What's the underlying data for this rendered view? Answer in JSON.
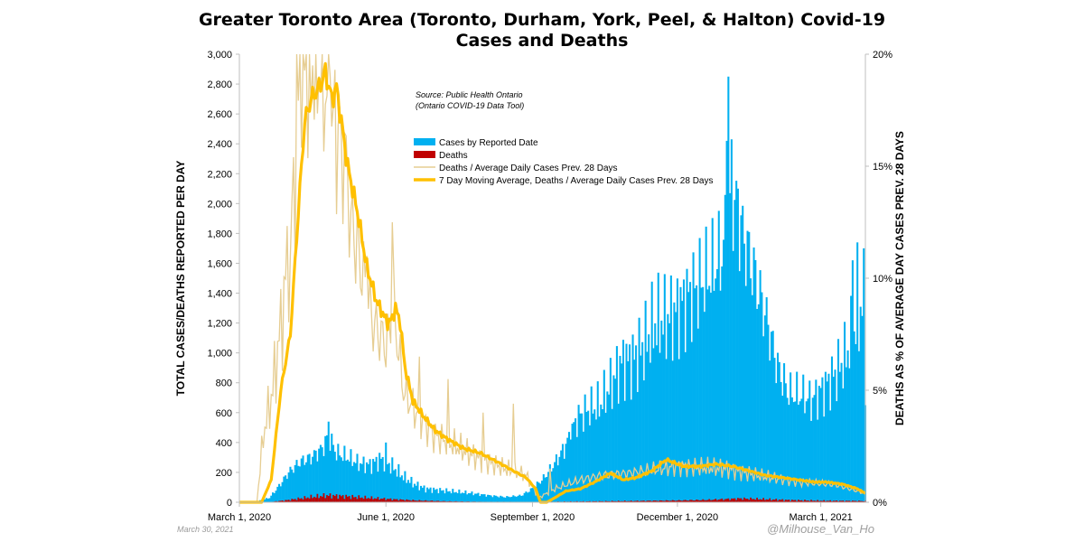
{
  "chart_data": {
    "type": "bar",
    "title_lines": [
      "Greater Toronto Area (Toronto, Durham, York, Peel, & Halton) Covid-19",
      "Cases and Deaths"
    ],
    "ylabel": "TOTAL CASES/DEATHS REPORTED PER DAY",
    "y2label": "DEATHS AS % OF AVERAGE DAY CASES PREV. 28 DAYS",
    "ylim": [
      0,
      3000
    ],
    "y2lim": [
      0,
      20
    ],
    "xlim": [
      "2020-03-01",
      "2021-03-29"
    ],
    "yticks": [
      "0",
      "200",
      "400",
      "600",
      "800",
      "1,000",
      "1,200",
      "1,400",
      "1,600",
      "1,800",
      "2,000",
      "2,200",
      "2,400",
      "2,600",
      "2,800",
      "3,000"
    ],
    "y2ticks": [
      "0%",
      "5%",
      "10%",
      "15%",
      "20%"
    ],
    "xticks": [
      {
        "date": "2020-03-01",
        "label": "March 1, 2020"
      },
      {
        "date": "2020-06-01",
        "label": "June 1, 2020"
      },
      {
        "date": "2020-09-01",
        "label": "September 1, 2020"
      },
      {
        "date": "2020-12-01",
        "label": "December 1, 2020"
      },
      {
        "date": "2021-03-01",
        "label": "March 1, 2021"
      }
    ],
    "grid": false,
    "legend_position": "top-center",
    "series": [
      {
        "name": "Cases by Reported Date",
        "type": "bar",
        "axis": "left",
        "color": "#00b0f0",
        "keypoints": [
          [
            "2020-03-01",
            0
          ],
          [
            "2020-03-12",
            5
          ],
          [
            "2020-03-20",
            30
          ],
          [
            "2020-03-26",
            110
          ],
          [
            "2020-04-01",
            200
          ],
          [
            "2020-04-08",
            270
          ],
          [
            "2020-04-15",
            300
          ],
          [
            "2020-04-22",
            360
          ],
          [
            "2020-04-26",
            440
          ],
          [
            "2020-05-01",
            330
          ],
          [
            "2020-05-08",
            300
          ],
          [
            "2020-05-15",
            260
          ],
          [
            "2020-05-22",
            250
          ],
          [
            "2020-05-29",
            290
          ],
          [
            "2020-06-05",
            240
          ],
          [
            "2020-06-12",
            170
          ],
          [
            "2020-06-19",
            120
          ],
          [
            "2020-06-26",
            90
          ],
          [
            "2020-07-05",
            80
          ],
          [
            "2020-07-15",
            70
          ],
          [
            "2020-07-25",
            60
          ],
          [
            "2020-08-05",
            45
          ],
          [
            "2020-08-15",
            35
          ],
          [
            "2020-08-25",
            45
          ],
          [
            "2020-09-01",
            90
          ],
          [
            "2020-09-08",
            160
          ],
          [
            "2020-09-15",
            260
          ],
          [
            "2020-09-22",
            380
          ],
          [
            "2020-09-29",
            560
          ],
          [
            "2020-10-06",
            620
          ],
          [
            "2020-10-13",
            650
          ],
          [
            "2020-10-20",
            780
          ],
          [
            "2020-10-27",
            930
          ],
          [
            "2020-11-03",
            950
          ],
          [
            "2020-11-10",
            1050
          ],
          [
            "2020-11-17",
            1200
          ],
          [
            "2020-11-24",
            1220
          ],
          [
            "2020-12-01",
            1280
          ],
          [
            "2020-12-08",
            1380
          ],
          [
            "2020-12-15",
            1460
          ],
          [
            "2020-12-22",
            1540
          ],
          [
            "2020-12-29",
            1660
          ],
          [
            "2021-01-05",
            2050
          ],
          [
            "2021-01-12",
            1750
          ],
          [
            "2021-01-19",
            1500
          ],
          [
            "2021-01-26",
            1220
          ],
          [
            "2021-02-02",
            900
          ],
          [
            "2021-02-09",
            730
          ],
          [
            "2021-02-16",
            720
          ],
          [
            "2021-02-23",
            680
          ],
          [
            "2021-03-02",
            750
          ],
          [
            "2021-03-09",
            840
          ],
          [
            "2021-03-16",
            960
          ],
          [
            "2021-03-23",
            1180
          ],
          [
            "2021-03-29",
            1400
          ]
        ],
        "spikes": [
          [
            "2021-01-02",
            2850
          ],
          [
            "2021-01-01",
            2420
          ],
          [
            "2021-01-04",
            2430
          ],
          [
            "2021-01-08",
            2100
          ],
          [
            "2021-03-24",
            1740
          ],
          [
            "2021-03-21",
            1620
          ],
          [
            "2020-04-26",
            540
          ],
          [
            "2020-06-01",
            400
          ],
          [
            "2020-09-25",
            420
          ],
          [
            "2021-03-29",
            650
          ]
        ]
      },
      {
        "name": "Deaths",
        "type": "bar",
        "axis": "left",
        "color": "#c00000",
        "keypoints": [
          [
            "2020-03-01",
            0
          ],
          [
            "2020-03-20",
            1
          ],
          [
            "2020-04-01",
            15
          ],
          [
            "2020-04-15",
            35
          ],
          [
            "2020-04-25",
            45
          ],
          [
            "2020-05-05",
            40
          ],
          [
            "2020-05-20",
            30
          ],
          [
            "2020-06-05",
            20
          ],
          [
            "2020-06-20",
            12
          ],
          [
            "2020-07-10",
            6
          ],
          [
            "2020-08-01",
            3
          ],
          [
            "2020-09-01",
            2
          ],
          [
            "2020-10-01",
            5
          ],
          [
            "2020-11-01",
            8
          ],
          [
            "2020-12-01",
            12
          ],
          [
            "2020-12-20",
            16
          ],
          [
            "2021-01-10",
            25
          ],
          [
            "2021-01-25",
            20
          ],
          [
            "2021-02-10",
            14
          ],
          [
            "2021-03-01",
            10
          ],
          [
            "2021-03-29",
            8
          ]
        ]
      },
      {
        "name": "Deaths / Average Daily Cases Prev. 28 Days",
        "type": "line",
        "axis": "right",
        "color": "#e6cd92",
        "keypoints": [
          [
            "2020-03-01",
            0
          ],
          [
            "2020-03-12",
            0
          ],
          [
            "2020-03-16",
            3
          ],
          [
            "2020-03-22",
            5
          ],
          [
            "2020-03-29",
            9
          ],
          [
            "2020-04-05",
            15
          ],
          [
            "2020-04-09",
            21
          ],
          [
            "2020-04-13",
            19
          ],
          [
            "2020-04-20",
            20
          ],
          [
            "2020-04-28",
            17
          ],
          [
            "2020-05-05",
            16
          ],
          [
            "2020-05-12",
            12
          ],
          [
            "2020-05-18",
            10
          ],
          [
            "2020-05-24",
            8
          ],
          [
            "2020-06-01",
            7
          ],
          [
            "2020-06-06",
            8.5
          ],
          [
            "2020-06-12",
            5
          ],
          [
            "2020-06-20",
            4
          ],
          [
            "2020-07-01",
            3
          ],
          [
            "2020-07-15",
            2.5
          ],
          [
            "2020-07-28",
            2
          ],
          [
            "2020-08-15",
            1.5
          ],
          [
            "2020-08-28",
            1.2
          ],
          [
            "2020-09-05",
            0.2
          ],
          [
            "2020-09-15",
            0.6
          ],
          [
            "2020-10-01",
            1
          ],
          [
            "2020-10-15",
            1.2
          ],
          [
            "2020-11-01",
            1.3
          ],
          [
            "2020-12-01",
            1.6
          ],
          [
            "2021-01-01",
            1.5
          ],
          [
            "2021-01-20",
            1.2
          ],
          [
            "2021-02-15",
            0.9
          ],
          [
            "2021-03-10",
            0.8
          ],
          [
            "2021-03-29",
            0.4
          ]
        ],
        "spikes": [
          [
            "2020-03-23",
            7.2
          ],
          [
            "2020-04-02",
            11
          ],
          [
            "2020-04-10",
            20
          ],
          [
            "2020-04-12",
            20
          ],
          [
            "2020-04-16",
            19.5
          ],
          [
            "2020-04-22",
            20
          ],
          [
            "2020-04-27",
            19
          ],
          [
            "2020-05-04",
            16.5
          ],
          [
            "2020-05-10",
            13
          ],
          [
            "2020-05-20",
            11
          ],
          [
            "2020-06-05",
            12.5
          ],
          [
            "2020-06-22",
            6.5
          ],
          [
            "2020-07-10",
            5.5
          ],
          [
            "2020-08-01",
            4
          ],
          [
            "2020-08-20",
            4.4
          ],
          [
            "2020-09-12",
            1.5
          ]
        ]
      },
      {
        "name": "7 Day Moving Average, Deaths / Average Daily Cases Prev. 28 Days",
        "type": "line",
        "axis": "right",
        "color": "#ffc000",
        "keypoints": [
          [
            "2020-03-01",
            0
          ],
          [
            "2020-03-15",
            0
          ],
          [
            "2020-03-21",
            1
          ],
          [
            "2020-03-27",
            5
          ],
          [
            "2020-04-02",
            7.5
          ],
          [
            "2020-04-08",
            14
          ],
          [
            "2020-04-11",
            17
          ],
          [
            "2020-04-15",
            18
          ],
          [
            "2020-04-20",
            18.5
          ],
          [
            "2020-04-24",
            19.2
          ],
          [
            "2020-04-28",
            18
          ],
          [
            "2020-05-01",
            18.5
          ],
          [
            "2020-05-03",
            17.5
          ],
          [
            "2020-05-08",
            15
          ],
          [
            "2020-05-14",
            13
          ],
          [
            "2020-05-20",
            10.5
          ],
          [
            "2020-05-26",
            9
          ],
          [
            "2020-06-02",
            8
          ],
          [
            "2020-06-05",
            8.2
          ],
          [
            "2020-06-07",
            8.7
          ],
          [
            "2020-06-10",
            8
          ],
          [
            "2020-06-13",
            6
          ],
          [
            "2020-06-18",
            4.5
          ],
          [
            "2020-06-25",
            3.8
          ],
          [
            "2020-07-02",
            3.2
          ],
          [
            "2020-07-10",
            2.8
          ],
          [
            "2020-07-20",
            2.4
          ],
          [
            "2020-07-30",
            2.2
          ],
          [
            "2020-08-10",
            1.8
          ],
          [
            "2020-08-20",
            1.4
          ],
          [
            "2020-08-28",
            1.1
          ],
          [
            "2020-09-03",
            0.6
          ],
          [
            "2020-09-06",
            0
          ],
          [
            "2020-09-10",
            0
          ],
          [
            "2020-09-15",
            0.2
          ],
          [
            "2020-09-22",
            0.5
          ],
          [
            "2020-10-01",
            0.6
          ],
          [
            "2020-10-10",
            0.9
          ],
          [
            "2020-10-20",
            1.3
          ],
          [
            "2020-10-28",
            1.0
          ],
          [
            "2020-11-05",
            1.1
          ],
          [
            "2020-11-15",
            1.4
          ],
          [
            "2020-11-24",
            1.9
          ],
          [
            "2020-12-05",
            1.6
          ],
          [
            "2020-12-15",
            1.6
          ],
          [
            "2020-12-25",
            1.7
          ],
          [
            "2021-01-05",
            1.6
          ],
          [
            "2021-01-15",
            1.4
          ],
          [
            "2021-01-25",
            1.2
          ],
          [
            "2021-02-05",
            1.1
          ],
          [
            "2021-02-15",
            1.0
          ],
          [
            "2021-02-25",
            0.9
          ],
          [
            "2021-03-05",
            0.9
          ],
          [
            "2021-03-15",
            0.8
          ],
          [
            "2021-03-24",
            0.6
          ],
          [
            "2021-03-29",
            0.4
          ]
        ]
      }
    ],
    "annotations": [
      "Source: Public Health Ontario",
      "(Ontario COVID-19 Data Tool)"
    ],
    "date_stamp": "March 30, 2021",
    "credit": "@Milhouse_Van_Ho"
  }
}
